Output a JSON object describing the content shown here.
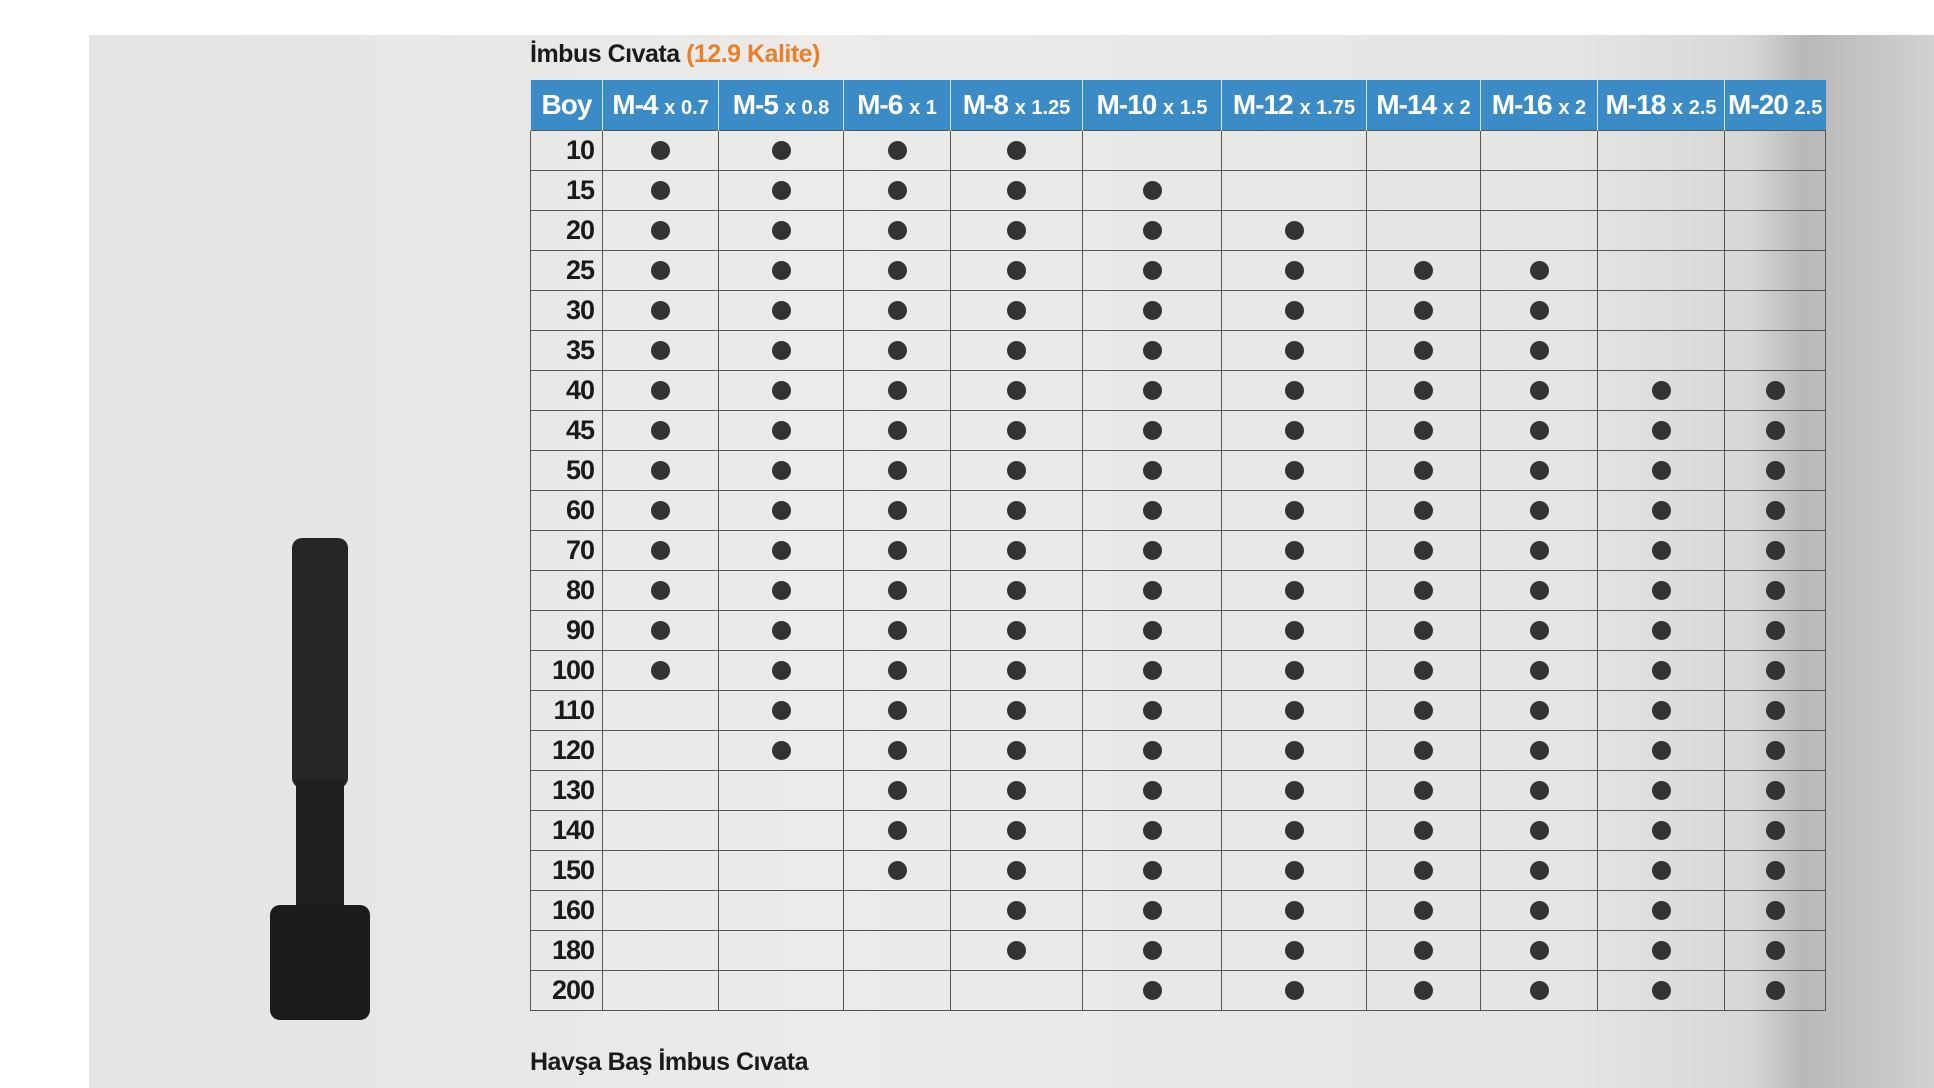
{
  "title": "İmbus Cıvata",
  "subtitle": "(12.9 Kalite)",
  "table": {
    "corner": "Boy",
    "columns": [
      {
        "size": "M-4",
        "pitch": "x 0.7"
      },
      {
        "size": "M-5",
        "pitch": "x 0.8"
      },
      {
        "size": "M-6",
        "pitch": "x 1"
      },
      {
        "size": "M-8",
        "pitch": "x 1.25"
      },
      {
        "size": "M-10",
        "pitch": "x 1.5"
      },
      {
        "size": "M-12",
        "pitch": "x 1.75"
      },
      {
        "size": "M-14",
        "pitch": "x 2"
      },
      {
        "size": "M-16",
        "pitch": "x 2"
      },
      {
        "size": "M-18",
        "pitch": "x 2.5"
      },
      {
        "size": "M-20",
        "pitch": "2.5"
      }
    ],
    "rows": [
      {
        "boy": "10",
        "available": [
          true,
          true,
          true,
          true,
          false,
          false,
          false,
          false,
          false,
          false
        ]
      },
      {
        "boy": "15",
        "available": [
          true,
          true,
          true,
          true,
          true,
          false,
          false,
          false,
          false,
          false
        ]
      },
      {
        "boy": "20",
        "available": [
          true,
          true,
          true,
          true,
          true,
          true,
          false,
          false,
          false,
          false
        ]
      },
      {
        "boy": "25",
        "available": [
          true,
          true,
          true,
          true,
          true,
          true,
          true,
          true,
          false,
          false
        ]
      },
      {
        "boy": "30",
        "available": [
          true,
          true,
          true,
          true,
          true,
          true,
          true,
          true,
          false,
          false
        ]
      },
      {
        "boy": "35",
        "available": [
          true,
          true,
          true,
          true,
          true,
          true,
          true,
          true,
          false,
          false
        ]
      },
      {
        "boy": "40",
        "available": [
          true,
          true,
          true,
          true,
          true,
          true,
          true,
          true,
          true,
          true
        ]
      },
      {
        "boy": "45",
        "available": [
          true,
          true,
          true,
          true,
          true,
          true,
          true,
          true,
          true,
          true
        ]
      },
      {
        "boy": "50",
        "available": [
          true,
          true,
          true,
          true,
          true,
          true,
          true,
          true,
          true,
          true
        ]
      },
      {
        "boy": "60",
        "available": [
          true,
          true,
          true,
          true,
          true,
          true,
          true,
          true,
          true,
          true
        ]
      },
      {
        "boy": "70",
        "available": [
          true,
          true,
          true,
          true,
          true,
          true,
          true,
          true,
          true,
          true
        ]
      },
      {
        "boy": "80",
        "available": [
          true,
          true,
          true,
          true,
          true,
          true,
          true,
          true,
          true,
          true
        ]
      },
      {
        "boy": "90",
        "available": [
          true,
          true,
          true,
          true,
          true,
          true,
          true,
          true,
          true,
          true
        ]
      },
      {
        "boy": "100",
        "available": [
          true,
          true,
          true,
          true,
          true,
          true,
          true,
          true,
          true,
          true
        ]
      },
      {
        "boy": "110",
        "available": [
          false,
          true,
          true,
          true,
          true,
          true,
          true,
          true,
          true,
          true
        ]
      },
      {
        "boy": "120",
        "available": [
          false,
          true,
          true,
          true,
          true,
          true,
          true,
          true,
          true,
          true
        ]
      },
      {
        "boy": "130",
        "available": [
          false,
          false,
          true,
          true,
          true,
          true,
          true,
          true,
          true,
          true
        ]
      },
      {
        "boy": "140",
        "available": [
          false,
          false,
          true,
          true,
          true,
          true,
          true,
          true,
          true,
          true
        ]
      },
      {
        "boy": "150",
        "available": [
          false,
          false,
          true,
          true,
          true,
          true,
          true,
          true,
          true,
          true
        ]
      },
      {
        "boy": "160",
        "available": [
          false,
          false,
          false,
          true,
          true,
          true,
          true,
          true,
          true,
          true
        ]
      },
      {
        "boy": "180",
        "available": [
          false,
          false,
          false,
          true,
          true,
          true,
          true,
          true,
          true,
          true
        ]
      },
      {
        "boy": "200",
        "available": [
          false,
          false,
          false,
          false,
          true,
          true,
          true,
          true,
          true,
          true
        ]
      }
    ]
  },
  "next_title": "Havşa Baş İmbus Cıvata"
}
